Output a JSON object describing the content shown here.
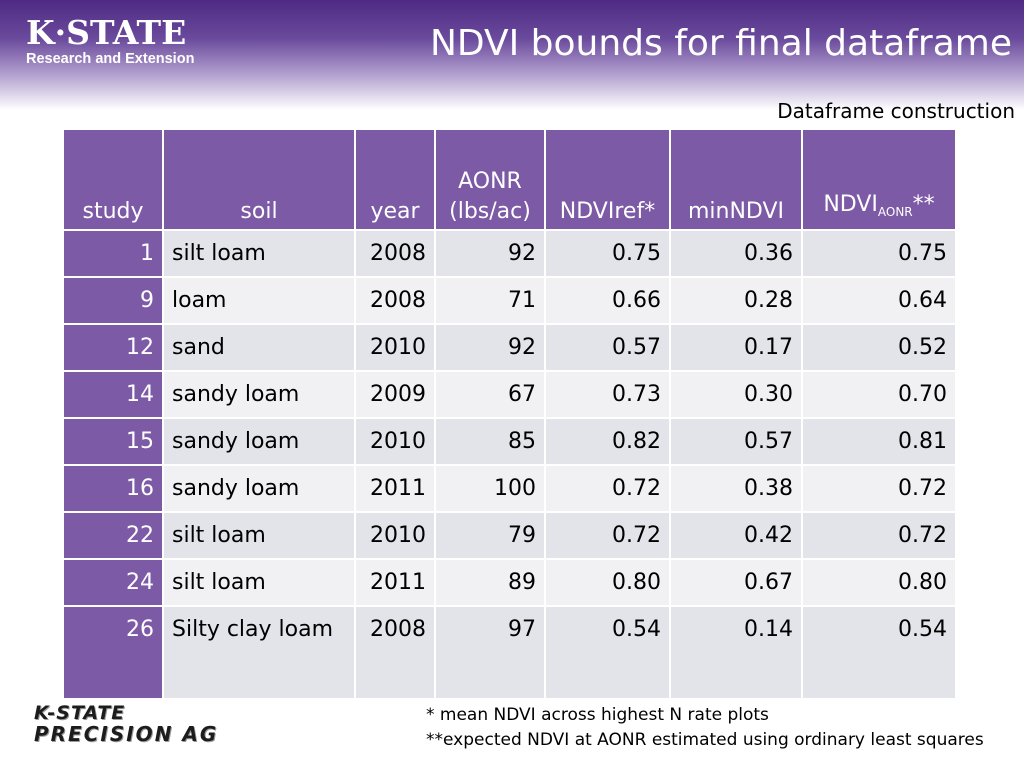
{
  "header": {
    "logo_main": "K·STATE",
    "logo_sub": "Research and Extension",
    "title": "NDVI bounds for final dataframe",
    "subtitle": "Dataframe construction"
  },
  "table": {
    "headers": {
      "study": "study",
      "soil": "soil",
      "year": "year",
      "aonr_line1": "AONR",
      "aonr_line2": "(lbs/ac)",
      "ndviref": "NDVIref*",
      "minndvi": "minNDVI",
      "ndviaonr_base": "NDVI",
      "ndviaonr_sub": "AONR",
      "ndviaonr_suffix": "**"
    },
    "rows": [
      {
        "study": "1",
        "soil": "silt loam",
        "year": "2008",
        "aonr": "92",
        "ndviref": "0.75",
        "minndvi": "0.36",
        "ndviaonr": "0.75"
      },
      {
        "study": "9",
        "soil": "loam",
        "year": "2008",
        "aonr": "71",
        "ndviref": "0.66",
        "minndvi": "0.28",
        "ndviaonr": "0.64"
      },
      {
        "study": "12",
        "soil": "sand",
        "year": "2010",
        "aonr": "92",
        "ndviref": "0.57",
        "minndvi": "0.17",
        "ndviaonr": "0.52"
      },
      {
        "study": "14",
        "soil": "sandy loam",
        "year": "2009",
        "aonr": "67",
        "ndviref": "0.73",
        "minndvi": "0.30",
        "ndviaonr": "0.70"
      },
      {
        "study": "15",
        "soil": "sandy loam",
        "year": "2010",
        "aonr": "85",
        "ndviref": "0.82",
        "minndvi": "0.57",
        "ndviaonr": "0.81"
      },
      {
        "study": "16",
        "soil": "sandy loam",
        "year": "2011",
        "aonr": "100",
        "ndviref": "0.72",
        "minndvi": "0.38",
        "ndviaonr": "0.72"
      },
      {
        "study": "22",
        "soil": "silt loam",
        "year": "2010",
        "aonr": "79",
        "ndviref": "0.72",
        "minndvi": "0.42",
        "ndviaonr": "0.72"
      },
      {
        "study": "24",
        "soil": "silt loam",
        "year": "2011",
        "aonr": "89",
        "ndviref": "0.80",
        "minndvi": "0.67",
        "ndviaonr": "0.80"
      },
      {
        "study": "26",
        "soil": "Silty clay loam",
        "year": "2008",
        "aonr": "97",
        "ndviref": "0.54",
        "minndvi": "0.14",
        "ndviaonr": "0.54"
      }
    ]
  },
  "footnotes": {
    "note1": "* mean NDVI across highest N rate plots",
    "note2": "**expected NDVI at AONR estimated using ordinary least squares"
  },
  "footer_logo": {
    "line1": "K-STATE",
    "line2": "PRECISION AG"
  },
  "colors": {
    "brand_purple": "#4e2a84",
    "header_cell": "#7c5aa6",
    "row_light": "#f1f1f4",
    "row_dark": "#e3e3ea"
  }
}
